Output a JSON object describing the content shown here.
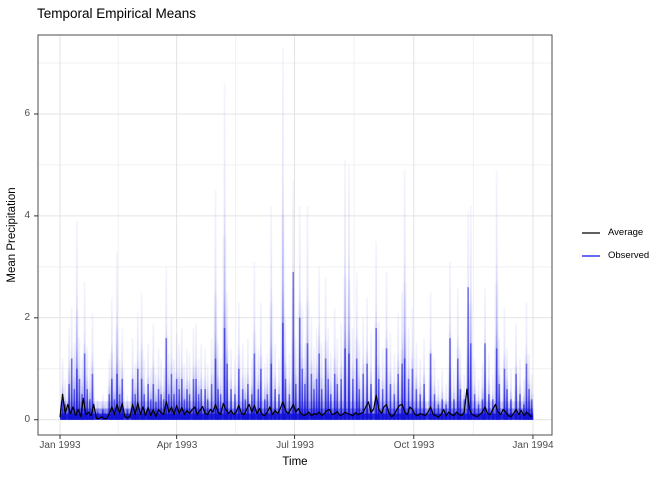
{
  "chart_data": {
    "type": "line",
    "title": "Temporal Empirical Means",
    "xlabel": "Time",
    "ylabel": "Mean Precipitation",
    "x_ticks": [
      "Jan 1993",
      "Apr 1993",
      "Jul 1993",
      "Oct 1993",
      "Jan 1994"
    ],
    "x_tick_days": [
      0,
      90,
      181,
      273,
      365
    ],
    "xlim_days": [
      -17,
      379.7
    ],
    "y_ticks": [
      0,
      2,
      4,
      6
    ],
    "y_minor": [
      1,
      3,
      5,
      7
    ],
    "ylim": [
      -0.3,
      7.55
    ],
    "grid": "on",
    "legend_position": "right",
    "legend": [
      {
        "label": "Average",
        "color": "#000000"
      },
      {
        "label": "Observed",
        "color": "#1212f0"
      }
    ],
    "colors": {
      "observed": "#0f0fd8",
      "average": "#000000",
      "grid_major": "#e3e3e3",
      "grid_minor": "#f1f1f1",
      "panel_border": "#4d4d4d",
      "tick_mark": "#333333",
      "tick_label": "#4d4d4d"
    },
    "series": [
      {
        "name": "Average",
        "kind": "line",
        "day_step": 2,
        "values": [
          0.05,
          0.5,
          0.12,
          0.3,
          0.12,
          0.25,
          0.08,
          0.2,
          0.06,
          0.42,
          0.1,
          0.15,
          0.08,
          0.3,
          0.03,
          0.02,
          0.06,
          0.02,
          0.02,
          0.12,
          0.25,
          0.1,
          0.3,
          0.12,
          0.32,
          0.06,
          0.04,
          0.06,
          0.3,
          0.1,
          0.33,
          0.1,
          0.25,
          0.08,
          0.24,
          0.08,
          0.2,
          0.06,
          0.2,
          0.14,
          0.1,
          0.36,
          0.15,
          0.25,
          0.1,
          0.28,
          0.12,
          0.24,
          0.1,
          0.18,
          0.12,
          0.2,
          0.25,
          0.1,
          0.18,
          0.26,
          0.12,
          0.1,
          0.2,
          0.15,
          0.3,
          0.15,
          0.1,
          0.32,
          0.2,
          0.12,
          0.18,
          0.1,
          0.15,
          0.28,
          0.12,
          0.1,
          0.2,
          0.3,
          0.15,
          0.28,
          0.12,
          0.22,
          0.1,
          0.08,
          0.15,
          0.25,
          0.1,
          0.18,
          0.12,
          0.22,
          0.35,
          0.18,
          0.12,
          0.2,
          0.3,
          0.15,
          0.22,
          0.12,
          0.08,
          0.1,
          0.15,
          0.08,
          0.12,
          0.1,
          0.15,
          0.08,
          0.12,
          0.18,
          0.2,
          0.1,
          0.12,
          0.16,
          0.08,
          0.1,
          0.15,
          0.12,
          0.1,
          0.08,
          0.14,
          0.1,
          0.12,
          0.15,
          0.25,
          0.35,
          0.15,
          0.2,
          0.48,
          0.2,
          0.12,
          0.25,
          0.3,
          0.12,
          0.06,
          0.1,
          0.2,
          0.28,
          0.3,
          0.15,
          0.1,
          0.25,
          0.2,
          0.1,
          0.08,
          0.12,
          0.1,
          0.08,
          0.15,
          0.25,
          0.1,
          0.08,
          0.05,
          0.1,
          0.2,
          0.08,
          0.15,
          0.1,
          0.08,
          0.15,
          0.1,
          0.08,
          0.15,
          0.6,
          0.2,
          0.1,
          0.08,
          0.06,
          0.1,
          0.15,
          0.25,
          0.12,
          0.1,
          0.2,
          0.3,
          0.15,
          0.1,
          0.2,
          0.15,
          0.08,
          0.06,
          0.12,
          0.2,
          0.1,
          0.18,
          0.08,
          0.15,
          0.1,
          0.05
        ]
      },
      {
        "name": "Observed",
        "kind": "spike-envelope",
        "note": "many overlapping semi-transparent series; spikes = [day, envelope_max, dark_core]",
        "base_band": [
          0.12,
          0.22,
          0.36
        ],
        "spikes": [
          [
            2,
            1.2,
            0.5
          ],
          [
            4,
            0.8,
            0.3
          ],
          [
            7,
            1.8,
            0.7
          ],
          [
            9,
            2.2,
            1.2
          ],
          [
            11,
            1.5,
            0.6
          ],
          [
            13,
            3.9,
            1.0
          ],
          [
            15,
            1.6,
            0.8
          ],
          [
            17,
            1.2,
            0.5
          ],
          [
            19,
            2.7,
            1.3
          ],
          [
            21,
            1.4,
            0.6
          ],
          [
            23,
            1.0,
            0.4
          ],
          [
            25,
            2.1,
            0.9
          ],
          [
            29,
            0.4,
            0.15
          ],
          [
            33,
            0.5,
            0.2
          ],
          [
            35,
            0.3,
            0.1
          ],
          [
            38,
            1.2,
            0.5
          ],
          [
            40,
            2.4,
            0.8
          ],
          [
            42,
            1.0,
            0.4
          ],
          [
            44,
            3.3,
            0.9
          ],
          [
            46,
            1.2,
            0.5
          ],
          [
            48,
            1.8,
            0.8
          ],
          [
            52,
            0.5,
            0.2
          ],
          [
            56,
            1.6,
            0.8
          ],
          [
            58,
            1.1,
            0.5
          ],
          [
            60,
            2.1,
            1.0
          ],
          [
            63,
            2.5,
            0.8
          ],
          [
            65,
            1.2,
            0.5
          ],
          [
            68,
            1.5,
            0.7
          ],
          [
            70,
            1.0,
            0.4
          ],
          [
            72,
            1.9,
            0.7
          ],
          [
            74,
            0.9,
            0.35
          ],
          [
            76,
            1.4,
            0.6
          ],
          [
            78,
            1.2,
            0.5
          ],
          [
            80,
            1.0,
            0.4
          ],
          [
            82,
            3.0,
            1.6
          ],
          [
            84,
            1.3,
            0.5
          ],
          [
            86,
            2.0,
            0.9
          ],
          [
            88,
            1.2,
            0.5
          ],
          [
            90,
            1.7,
            0.8
          ],
          [
            92,
            1.5,
            0.6
          ],
          [
            94,
            1.8,
            0.8
          ],
          [
            96,
            1.1,
            0.4
          ],
          [
            98,
            1.4,
            0.6
          ],
          [
            100,
            1.3,
            0.5
          ],
          [
            103,
            1.8,
            0.8
          ],
          [
            105,
            1.9,
            0.8
          ],
          [
            107,
            1.2,
            0.5
          ],
          [
            109,
            1.5,
            0.6
          ],
          [
            112,
            1.4,
            0.6
          ],
          [
            114,
            1.1,
            0.4
          ],
          [
            117,
            1.6,
            0.7
          ],
          [
            120,
            4.5,
            1.2
          ],
          [
            122,
            1.5,
            0.6
          ],
          [
            124,
            1.2,
            0.5
          ],
          [
            127,
            6.6,
            1.8
          ],
          [
            129,
            2.5,
            1.1
          ],
          [
            132,
            1.4,
            0.6
          ],
          [
            135,
            1.2,
            0.5
          ],
          [
            138,
            2.3,
            1.0
          ],
          [
            141,
            1.5,
            0.6
          ],
          [
            143,
            1.0,
            0.4
          ],
          [
            145,
            1.6,
            0.7
          ],
          [
            148,
            1.2,
            0.5
          ],
          [
            150,
            3.1,
            1.3
          ],
          [
            153,
            1.4,
            0.6
          ],
          [
            155,
            2.3,
            1.0
          ],
          [
            158,
            1.1,
            0.4
          ],
          [
            160,
            1.3,
            0.5
          ],
          [
            163,
            4.2,
            1.1
          ],
          [
            166,
            1.5,
            0.6
          ],
          [
            169,
            1.2,
            0.5
          ],
          [
            172,
            7.3,
            1.9
          ],
          [
            174,
            2.0,
            0.8
          ],
          [
            177,
            1.3,
            0.5
          ],
          [
            180,
            4.7,
            2.9
          ],
          [
            182,
            1.6,
            0.7
          ],
          [
            185,
            4.2,
            2.0
          ],
          [
            187,
            2.2,
            1.0
          ],
          [
            189,
            1.5,
            0.7
          ],
          [
            191,
            4.2,
            1.5
          ],
          [
            194,
            2.0,
            0.9
          ],
          [
            196,
            1.4,
            0.6
          ],
          [
            198,
            1.8,
            0.8
          ],
          [
            200,
            3.0,
            1.3
          ],
          [
            202,
            1.5,
            0.6
          ],
          [
            205,
            2.8,
            1.2
          ],
          [
            207,
            1.8,
            0.8
          ],
          [
            209,
            1.3,
            0.5
          ],
          [
            212,
            2.2,
            0.9
          ],
          [
            214,
            1.6,
            0.7
          ],
          [
            217,
            1.9,
            0.8
          ],
          [
            220,
            5.1,
            1.4
          ],
          [
            223,
            5.0,
            1.3
          ],
          [
            226,
            1.8,
            0.8
          ],
          [
            229,
            2.9,
            1.2
          ],
          [
            231,
            1.5,
            0.6
          ],
          [
            234,
            2.0,
            0.9
          ],
          [
            237,
            2.4,
            1.1
          ],
          [
            240,
            1.7,
            0.7
          ],
          [
            244,
            3.5,
            1.8
          ],
          [
            246,
            1.9,
            0.8
          ],
          [
            249,
            1.4,
            0.6
          ],
          [
            252,
            2.9,
            1.4
          ],
          [
            255,
            1.7,
            0.7
          ],
          [
            258,
            1.3,
            0.5
          ],
          [
            261,
            2.1,
            0.9
          ],
          [
            264,
            2.5,
            1.1
          ],
          [
            266,
            4.9,
            1.2
          ],
          [
            269,
            1.8,
            0.8
          ],
          [
            272,
            2.2,
            1.0
          ],
          [
            275,
            1.5,
            0.6
          ],
          [
            278,
            1.2,
            0.5
          ],
          [
            281,
            1.6,
            0.7
          ],
          [
            286,
            2.5,
            1.3
          ],
          [
            289,
            1.2,
            0.5
          ],
          [
            292,
            0.8,
            0.3
          ],
          [
            295,
            1.0,
            0.4
          ],
          [
            298,
            0.7,
            0.3
          ],
          [
            301,
            3.1,
            1.6
          ],
          [
            304,
            1.0,
            0.4
          ],
          [
            307,
            2.6,
            1.2
          ],
          [
            309,
            1.4,
            0.6
          ],
          [
            312,
            0.9,
            0.4
          ],
          [
            315,
            4.1,
            2.6
          ],
          [
            317,
            4.2,
            1.5
          ],
          [
            320,
            1.2,
            0.5
          ],
          [
            323,
            0.8,
            0.3
          ],
          [
            326,
            1.1,
            0.4
          ],
          [
            328,
            2.6,
            1.5
          ],
          [
            331,
            1.3,
            0.5
          ],
          [
            334,
            0.9,
            0.4
          ],
          [
            337,
            4.9,
            1.4
          ],
          [
            339,
            1.6,
            0.7
          ],
          [
            343,
            2.2,
            1.0
          ],
          [
            345,
            1.4,
            0.6
          ],
          [
            348,
            1.0,
            0.4
          ],
          [
            352,
            1.9,
            0.9
          ],
          [
            355,
            1.2,
            0.5
          ],
          [
            358,
            0.8,
            0.3
          ],
          [
            360,
            2.3,
            1.1
          ],
          [
            362,
            1.3,
            0.6
          ],
          [
            364,
            0.9,
            0.4
          ]
        ]
      }
    ]
  }
}
